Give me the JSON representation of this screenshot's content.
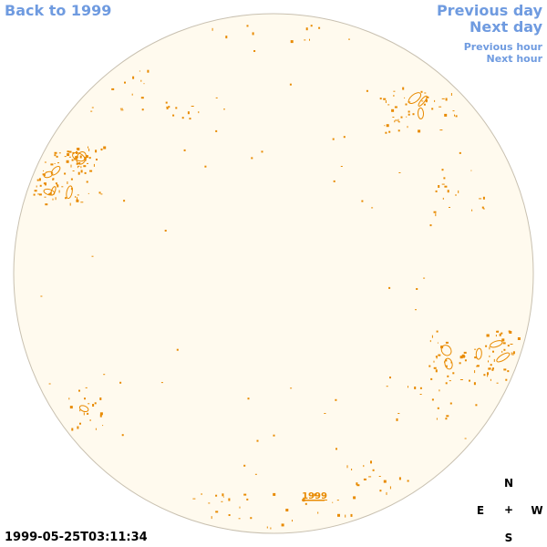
{
  "nav": {
    "back_label": "Back to 1999",
    "prev_day_label": "Previous day",
    "next_day_label": "Next day",
    "prev_hour_label": "Previous hour",
    "next_hour_label": "Next hour"
  },
  "timestamp": "1999-05-25T03:11:34",
  "disk": {
    "year_label": "1999",
    "fill_color": "#fffaee",
    "limb_color": "#c8c0b0",
    "contour_color": "#e88a00"
  },
  "compass": {
    "north": "N",
    "east": "E",
    "center": "+",
    "west": "W",
    "south": "S"
  },
  "colors": {
    "link": "#6f9be0",
    "text": "#000000"
  }
}
